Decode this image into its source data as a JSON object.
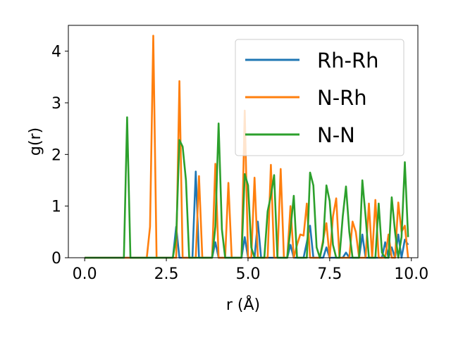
{
  "chart_data": {
    "type": "line",
    "xlabel": "r (Å)",
    "ylabel": "g(r)",
    "xlim": [
      -0.5,
      10.2
    ],
    "ylim": [
      0,
      4.5
    ],
    "xticks": [
      0.0,
      2.5,
      5.0,
      7.5,
      10.0
    ],
    "xtick_labels": [
      "0.0",
      "2.5",
      "5.0",
      "7.5",
      "10.0"
    ],
    "yticks": [
      0,
      1,
      2,
      3,
      4
    ],
    "ytick_labels": [
      "0",
      "1",
      "2",
      "3",
      "4"
    ],
    "grid": false,
    "legend_position": "top-right",
    "series": [
      {
        "name": "Rh-Rh",
        "color": "#1f77b4",
        "points": [
          [
            0.0,
            0
          ],
          [
            2.7,
            0
          ],
          [
            2.8,
            0.6
          ],
          [
            2.9,
            0
          ],
          [
            3.3,
            0
          ],
          [
            3.4,
            1.67
          ],
          [
            3.5,
            0
          ],
          [
            3.9,
            0
          ],
          [
            4.0,
            0.3
          ],
          [
            4.1,
            0
          ],
          [
            4.8,
            0
          ],
          [
            4.9,
            0.4
          ],
          [
            5.0,
            0
          ],
          [
            5.2,
            0
          ],
          [
            5.3,
            0.7
          ],
          [
            5.4,
            0
          ],
          [
            6.2,
            0
          ],
          [
            6.3,
            0.25
          ],
          [
            6.4,
            0
          ],
          [
            6.7,
            0
          ],
          [
            6.8,
            0.3
          ],
          [
            6.9,
            0.62
          ],
          [
            7.0,
            0
          ],
          [
            7.3,
            0
          ],
          [
            7.4,
            0.2
          ],
          [
            7.5,
            0
          ],
          [
            7.9,
            0
          ],
          [
            8.0,
            0.1
          ],
          [
            8.1,
            0
          ],
          [
            8.4,
            0
          ],
          [
            8.5,
            0.45
          ],
          [
            8.6,
            0
          ],
          [
            9.1,
            0
          ],
          [
            9.2,
            0.3
          ],
          [
            9.3,
            0
          ],
          [
            9.4,
            0.2
          ],
          [
            9.5,
            0
          ],
          [
            9.6,
            0.45
          ],
          [
            9.7,
            0
          ],
          [
            9.8,
            0.35
          ],
          [
            9.9,
            0.25
          ]
        ]
      },
      {
        "name": "N-Rh",
        "color": "#ff7f0e",
        "points": [
          [
            0.0,
            0
          ],
          [
            1.9,
            0
          ],
          [
            2.0,
            0.6
          ],
          [
            2.1,
            4.3
          ],
          [
            2.2,
            0
          ],
          [
            2.8,
            0
          ],
          [
            2.9,
            3.42
          ],
          [
            3.0,
            0
          ],
          [
            3.4,
            0
          ],
          [
            3.5,
            1.58
          ],
          [
            3.6,
            0
          ],
          [
            3.9,
            0
          ],
          [
            4.0,
            1.82
          ],
          [
            4.1,
            0
          ],
          [
            4.3,
            0
          ],
          [
            4.4,
            1.45
          ],
          [
            4.5,
            0
          ],
          [
            4.8,
            0
          ],
          [
            4.9,
            2.85
          ],
          [
            5.0,
            0
          ],
          [
            5.1,
            0
          ],
          [
            5.2,
            1.55
          ],
          [
            5.3,
            0
          ],
          [
            5.6,
            0
          ],
          [
            5.7,
            1.8
          ],
          [
            5.8,
            0
          ],
          [
            5.9,
            0
          ],
          [
            6.0,
            1.72
          ],
          [
            6.1,
            0
          ],
          [
            6.2,
            0
          ],
          [
            6.3,
            1.0
          ],
          [
            6.4,
            0
          ],
          [
            6.5,
            0.25
          ],
          [
            6.6,
            0.45
          ],
          [
            6.7,
            0.43
          ],
          [
            6.8,
            1.05
          ],
          [
            6.9,
            0
          ],
          [
            7.2,
            0
          ],
          [
            7.3,
            0.35
          ],
          [
            7.4,
            0.67
          ],
          [
            7.5,
            0
          ],
          [
            7.6,
            0.8
          ],
          [
            7.7,
            1.15
          ],
          [
            7.8,
            0
          ],
          [
            8.1,
            0
          ],
          [
            8.2,
            0.7
          ],
          [
            8.3,
            0.5
          ],
          [
            8.4,
            0
          ],
          [
            8.6,
            0
          ],
          [
            8.7,
            1.05
          ],
          [
            8.8,
            0
          ],
          [
            8.9,
            1.12
          ],
          [
            9.0,
            0
          ],
          [
            9.2,
            0
          ],
          [
            9.3,
            0.45
          ],
          [
            9.4,
            0
          ],
          [
            9.5,
            0
          ],
          [
            9.6,
            1.07
          ],
          [
            9.7,
            0.5
          ],
          [
            9.8,
            0.62
          ],
          [
            9.9,
            0
          ]
        ]
      },
      {
        "name": "N-N",
        "color": "#2ca02c",
        "points": [
          [
            0.0,
            0
          ],
          [
            1.2,
            0
          ],
          [
            1.3,
            2.72
          ],
          [
            1.4,
            0
          ],
          [
            2.7,
            0
          ],
          [
            2.8,
            0.4
          ],
          [
            2.9,
            2.28
          ],
          [
            3.0,
            2.15
          ],
          [
            3.1,
            1.5
          ],
          [
            3.2,
            0
          ],
          [
            3.9,
            0
          ],
          [
            4.0,
            0.6
          ],
          [
            4.1,
            2.6
          ],
          [
            4.2,
            0.55
          ],
          [
            4.3,
            0
          ],
          [
            4.8,
            0
          ],
          [
            4.9,
            1.62
          ],
          [
            5.0,
            1.4
          ],
          [
            5.1,
            0.2
          ],
          [
            5.2,
            0
          ],
          [
            5.5,
            0
          ],
          [
            5.6,
            0.9
          ],
          [
            5.7,
            1.2
          ],
          [
            5.8,
            1.6
          ],
          [
            5.9,
            0
          ],
          [
            6.2,
            0
          ],
          [
            6.3,
            0.55
          ],
          [
            6.4,
            1.2
          ],
          [
            6.5,
            0
          ],
          [
            6.8,
            0
          ],
          [
            6.9,
            1.65
          ],
          [
            7.0,
            1.4
          ],
          [
            7.1,
            0.2
          ],
          [
            7.2,
            0
          ],
          [
            7.3,
            0.3
          ],
          [
            7.4,
            1.4
          ],
          [
            7.5,
            1.1
          ],
          [
            7.6,
            0.25
          ],
          [
            7.7,
            0
          ],
          [
            7.8,
            0
          ],
          [
            7.9,
            0.8
          ],
          [
            8.0,
            1.38
          ],
          [
            8.1,
            0.5
          ],
          [
            8.2,
            0
          ],
          [
            8.4,
            0
          ],
          [
            8.5,
            1.5
          ],
          [
            8.6,
            0.8
          ],
          [
            8.7,
            0
          ],
          [
            8.9,
            0
          ],
          [
            9.0,
            1.05
          ],
          [
            9.1,
            0.1
          ],
          [
            9.2,
            0
          ],
          [
            9.3,
            0
          ],
          [
            9.4,
            1.17
          ],
          [
            9.5,
            0.5
          ],
          [
            9.6,
            0
          ],
          [
            9.7,
            0.4
          ],
          [
            9.8,
            1.85
          ],
          [
            9.9,
            0.4
          ]
        ]
      }
    ]
  }
}
